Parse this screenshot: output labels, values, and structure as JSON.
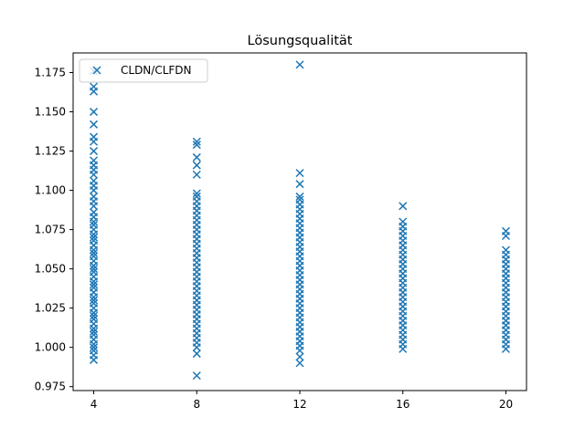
{
  "chart_data": {
    "type": "scatter",
    "title": "Lösungsqualität",
    "xlabel": "",
    "ylabel": "",
    "x_ticks": [
      "4",
      "8",
      "12",
      "16",
      "20"
    ],
    "y_ticks": [
      "0.975",
      "1.000",
      "1.025",
      "1.050",
      "1.075",
      "1.100",
      "1.125",
      "1.150",
      "1.175"
    ],
    "xlim": [
      3.2,
      20.8
    ],
    "ylim": [
      0.9725,
      1.1875
    ],
    "grid": false,
    "legend_position": "top-left",
    "marker": "x",
    "color": "#1f77b4",
    "series": [
      {
        "name": "CLDN/CLFDN",
        "points": {
          "4": [
            0.992,
            0.995,
            0.998,
            1.0,
            1.002,
            1.005,
            1.008,
            1.01,
            1.012,
            1.015,
            1.018,
            1.02,
            1.022,
            1.025,
            1.028,
            1.03,
            1.032,
            1.035,
            1.038,
            1.04,
            1.042,
            1.045,
            1.048,
            1.05,
            1.052,
            1.055,
            1.058,
            1.06,
            1.062,
            1.065,
            1.068,
            1.07,
            1.072,
            1.075,
            1.078,
            1.08,
            1.083,
            1.086,
            1.09,
            1.093,
            1.096,
            1.1,
            1.103,
            1.106,
            1.11,
            1.113,
            1.116,
            1.119,
            1.125,
            1.131,
            1.134,
            1.142,
            1.15,
            1.163,
            1.166,
            1.176
          ],
          "8": [
            0.982,
            0.996,
            1.0,
            1.003,
            1.006,
            1.009,
            1.012,
            1.015,
            1.018,
            1.021,
            1.024,
            1.027,
            1.03,
            1.033,
            1.036,
            1.039,
            1.042,
            1.045,
            1.048,
            1.051,
            1.054,
            1.057,
            1.06,
            1.063,
            1.066,
            1.069,
            1.072,
            1.075,
            1.078,
            1.081,
            1.084,
            1.087,
            1.09,
            1.093,
            1.096,
            1.098,
            1.11,
            1.116,
            1.121,
            1.129,
            1.131
          ],
          "12": [
            0.99,
            0.994,
            0.998,
            1.001,
            1.004,
            1.007,
            1.01,
            1.013,
            1.016,
            1.019,
            1.022,
            1.025,
            1.028,
            1.031,
            1.034,
            1.037,
            1.04,
            1.043,
            1.046,
            1.049,
            1.052,
            1.055,
            1.058,
            1.061,
            1.064,
            1.067,
            1.07,
            1.073,
            1.076,
            1.079,
            1.082,
            1.085,
            1.088,
            1.091,
            1.094,
            1.096,
            1.104,
            1.111,
            1.18
          ],
          "16": [
            0.999,
            1.002,
            1.005,
            1.008,
            1.011,
            1.014,
            1.017,
            1.02,
            1.023,
            1.026,
            1.029,
            1.032,
            1.035,
            1.038,
            1.041,
            1.044,
            1.047,
            1.05,
            1.053,
            1.056,
            1.059,
            1.062,
            1.065,
            1.068,
            1.071,
            1.074,
            1.077,
            1.08,
            1.09
          ],
          "20": [
            0.999,
            1.002,
            1.005,
            1.008,
            1.011,
            1.014,
            1.017,
            1.02,
            1.023,
            1.026,
            1.029,
            1.032,
            1.035,
            1.038,
            1.041,
            1.044,
            1.047,
            1.05,
            1.053,
            1.056,
            1.059,
            1.062,
            1.071,
            1.074
          ]
        }
      }
    ]
  }
}
